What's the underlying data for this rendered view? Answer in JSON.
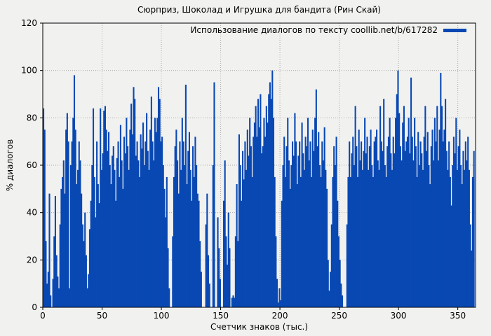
{
  "colors": {
    "background": "#f1f1f0",
    "bar": "#0948b3",
    "grid": "#a9a9a9",
    "axis": "#000000",
    "text": "#000000"
  },
  "chart_data": {
    "type": "bar",
    "title": "Сюрприз, Шоколад и Игрушка для бандита (Рин Скай)",
    "xlabel": "Счетчик знаков (тыс.)",
    "ylabel": "% диалогов",
    "xlim": [
      0,
      365
    ],
    "ylim": [
      0,
      120
    ],
    "xticks": [
      0,
      50,
      100,
      150,
      200,
      250,
      300,
      350
    ],
    "yticks": [
      0,
      20,
      40,
      60,
      80,
      100,
      120
    ],
    "grid": true,
    "legend_position": "top-right",
    "series": [
      {
        "name": "Использование диалогов по тексту coollib.net/b/617282",
        "color": "#0948b3",
        "x_start": 0,
        "x_step": 1,
        "values": [
          84,
          75,
          28,
          10,
          15,
          48,
          5,
          0,
          12,
          30,
          47,
          22,
          13,
          8,
          35,
          50,
          55,
          62,
          48,
          75,
          82,
          70,
          8,
          60,
          70,
          80,
          98,
          75,
          52,
          58,
          70,
          62,
          48,
          35,
          28,
          40,
          22,
          8,
          14,
          33,
          45,
          60,
          84,
          55,
          38,
          70,
          52,
          44,
          84,
          58,
          65,
          83,
          85,
          75,
          66,
          74,
          60,
          52,
          64,
          68,
          58,
          45,
          63,
          70,
          55,
          77,
          62,
          50,
          72,
          65,
          80,
          68,
          58,
          75,
          86,
          73,
          93,
          88,
          64,
          70,
          62,
          55,
          73,
          67,
          78,
          60,
          70,
          82,
          66,
          58,
          75,
          89,
          70,
          62,
          80,
          74,
          80,
          93,
          88,
          70,
          72,
          60,
          50,
          38,
          55,
          25,
          8,
          0,
          0,
          30,
          55,
          68,
          75,
          62,
          48,
          70,
          58,
          80,
          70,
          60,
          94,
          52,
          66,
          74,
          58,
          45,
          68,
          55,
          72,
          60,
          48,
          45,
          28,
          15,
          0,
          0,
          0,
          35,
          48,
          22,
          10,
          0,
          0,
          60,
          95,
          0,
          0,
          38,
          25,
          12,
          0,
          0,
          45,
          62,
          30,
          18,
          40,
          25,
          0,
          4,
          5,
          4,
          30,
          52,
          28,
          73,
          60,
          45,
          66,
          54,
          70,
          58,
          75,
          64,
          80,
          68,
          55,
          72,
          78,
          85,
          72,
          88,
          76,
          90,
          65,
          68,
          80,
          72,
          85,
          78,
          90,
          95,
          88,
          100,
          80,
          55,
          30,
          12,
          2,
          8,
          3,
          45,
          60,
          72,
          55,
          68,
          80,
          62,
          50,
          60,
          70,
          64,
          82,
          70,
          52,
          64,
          70,
          55,
          78,
          65,
          58,
          72,
          68,
          80,
          62,
          70,
          55,
          75,
          66,
          80,
          92,
          68,
          74,
          60,
          55,
          70,
          62,
          76,
          58,
          50,
          20,
          7,
          15,
          35,
          55,
          68,
          60,
          72,
          45,
          30,
          20,
          10,
          5,
          0,
          0,
          0,
          35,
          55,
          70,
          55,
          65,
          72,
          60,
          85,
          68,
          55,
          75,
          62,
          70,
          58,
          66,
          80,
          65,
          72,
          58,
          68,
          75,
          60,
          55,
          70,
          72,
          75,
          62,
          58,
          85,
          70,
          66,
          88,
          60,
          55,
          68,
          72,
          80,
          65,
          58,
          72,
          65,
          80,
          90,
          100,
          82,
          68,
          62,
          78,
          85,
          66,
          70,
          72,
          80,
          65,
          97,
          72,
          62,
          80,
          68,
          55,
          74,
          60,
          70,
          65,
          58,
          72,
          85,
          66,
          74,
          60,
          52,
          68,
          75,
          62,
          80,
          70,
          85,
          62,
          75,
          99,
          85,
          70,
          75,
          88,
          66,
          58,
          70,
          55,
          43,
          60,
          72,
          65,
          80,
          58,
          68,
          75,
          60,
          52,
          66,
          58,
          70,
          62,
          72,
          58,
          35,
          24,
          55,
          66
        ]
      }
    ]
  }
}
